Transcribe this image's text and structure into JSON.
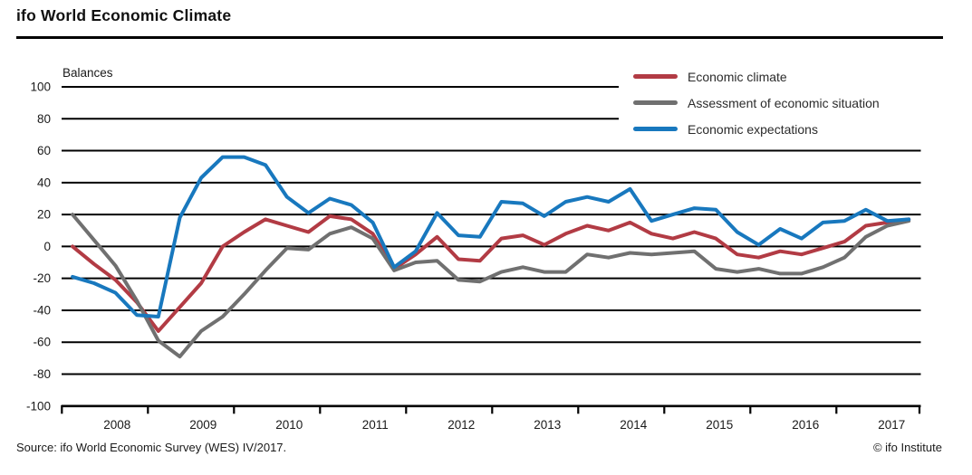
{
  "header": {
    "title": "ifo World Economic Climate"
  },
  "chart": {
    "y_axis_label": "Balances"
  },
  "legend": [
    {
      "label": "Economic climate",
      "color": "#b23b44"
    },
    {
      "label": "Assessment of economic situation",
      "color": "#707070"
    },
    {
      "label": "Economic expectations",
      "color": "#1878be"
    }
  ],
  "footer": {
    "source": "Source: ifo World Economic Survey (WES) IV/2017.",
    "copyright": "© ifo Institute"
  },
  "chart_data": {
    "type": "line",
    "title": "ifo World Economic Climate",
    "ylabel": "Balances",
    "ylim": [
      -100,
      100
    ],
    "ytick_step": 20,
    "grid": "horizontal",
    "legend_position": "top-right",
    "x_years": [
      "2008",
      "2009",
      "2010",
      "2011",
      "2012",
      "2013",
      "2014",
      "2015",
      "2016",
      "2017"
    ],
    "points_per_year": 4,
    "x_note": "quarterly values (WES surveys I-IV per year)",
    "series": [
      {
        "name": "Economic climate",
        "color": "#b23b44",
        "values": [
          0,
          -11,
          -21,
          -35,
          -53,
          -38,
          -23,
          0,
          9,
          17,
          13,
          9,
          19,
          17,
          8,
          -14,
          -5,
          6,
          -8,
          -9,
          5,
          7,
          1,
          8,
          13,
          10,
          15,
          8,
          5,
          9,
          5,
          -5,
          -7,
          -3,
          -5,
          -1,
          3,
          13,
          15,
          17
        ]
      },
      {
        "name": "Assessment of economic situation",
        "color": "#707070",
        "values": [
          20,
          4,
          -12,
          -34,
          -59,
          -69,
          -53,
          -44,
          -30,
          -15,
          -1,
          -2,
          8,
          12,
          5,
          -15,
          -10,
          -9,
          -21,
          -22,
          -16,
          -13,
          -16,
          -16,
          -5,
          -7,
          -4,
          -5,
          -4,
          -3,
          -14,
          -16,
          -14,
          -17,
          -17,
          -13,
          -7,
          6,
          13,
          16
        ]
      },
      {
        "name": "Economic expectations",
        "color": "#1878be",
        "values": [
          -19,
          -23,
          -29,
          -43,
          -44,
          18,
          43,
          56,
          56,
          51,
          31,
          21,
          30,
          26,
          15,
          -13,
          -3,
          21,
          7,
          6,
          28,
          27,
          19,
          28,
          31,
          28,
          36,
          16,
          20,
          24,
          23,
          9,
          1,
          11,
          5,
          15,
          16,
          23,
          16,
          17
        ]
      }
    ]
  }
}
